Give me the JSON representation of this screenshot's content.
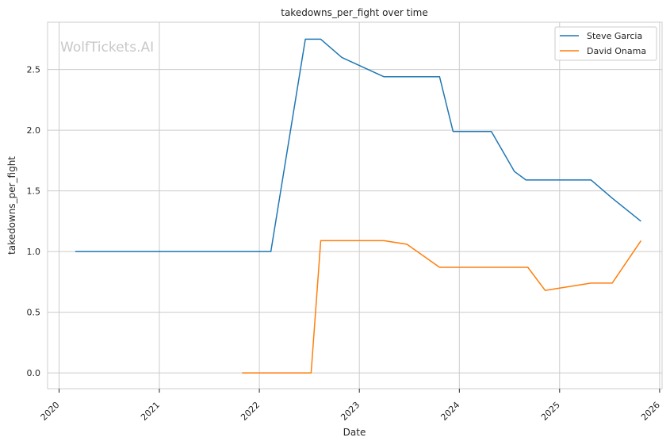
{
  "watermark": "WolfTickets.AI",
  "chart_data": {
    "type": "line",
    "title": "takedowns_per_fight over time",
    "xlabel": "Date",
    "ylabel": "takedowns_per_fight",
    "x_type": "date",
    "xlim": [
      "2019-11-20",
      "2026-01-10"
    ],
    "ylim": [
      -0.13,
      2.89
    ],
    "x_ticks": [
      "2020-01-01",
      "2021-01-01",
      "2022-01-01",
      "2023-01-01",
      "2024-01-01",
      "2025-01-01",
      "2026-01-01"
    ],
    "x_tick_labels": [
      "2020",
      "2021",
      "2022",
      "2023",
      "2024",
      "2025",
      "2026"
    ],
    "y_ticks": [
      0.0,
      0.5,
      1.0,
      1.5,
      2.0,
      2.5
    ],
    "y_tick_labels": [
      "0.0",
      "0.5",
      "1.0",
      "1.5",
      "2.0",
      "2.5"
    ],
    "grid": true,
    "legend_position": "top-right",
    "series": [
      {
        "name": "Steve Garcia",
        "color": "#1f77b4",
        "points": [
          [
            "2020-02-29",
            1.0
          ],
          [
            "2022-02-12",
            1.0
          ],
          [
            "2022-06-18",
            2.75
          ],
          [
            "2022-08-13",
            2.75
          ],
          [
            "2022-10-29",
            2.6
          ],
          [
            "2023-04-01",
            2.44
          ],
          [
            "2023-10-21",
            2.44
          ],
          [
            "2023-12-09",
            1.99
          ],
          [
            "2024-04-27",
            1.99
          ],
          [
            "2024-07-20",
            1.66
          ],
          [
            "2024-08-31",
            1.59
          ],
          [
            "2025-04-26",
            1.59
          ],
          [
            "2025-07-12",
            1.44
          ],
          [
            "2025-10-25",
            1.25
          ]
        ]
      },
      {
        "name": "David Onama",
        "color": "#ff7f0e",
        "points": [
          [
            "2021-10-30",
            0.0
          ],
          [
            "2022-07-09",
            0.0
          ],
          [
            "2022-08-13",
            1.09
          ],
          [
            "2023-04-01",
            1.09
          ],
          [
            "2023-06-24",
            1.06
          ],
          [
            "2023-10-21",
            0.87
          ],
          [
            "2024-09-07",
            0.87
          ],
          [
            "2024-11-09",
            0.68
          ],
          [
            "2025-04-26",
            0.74
          ],
          [
            "2025-07-12",
            0.74
          ],
          [
            "2025-10-25",
            1.09
          ]
        ]
      }
    ]
  }
}
